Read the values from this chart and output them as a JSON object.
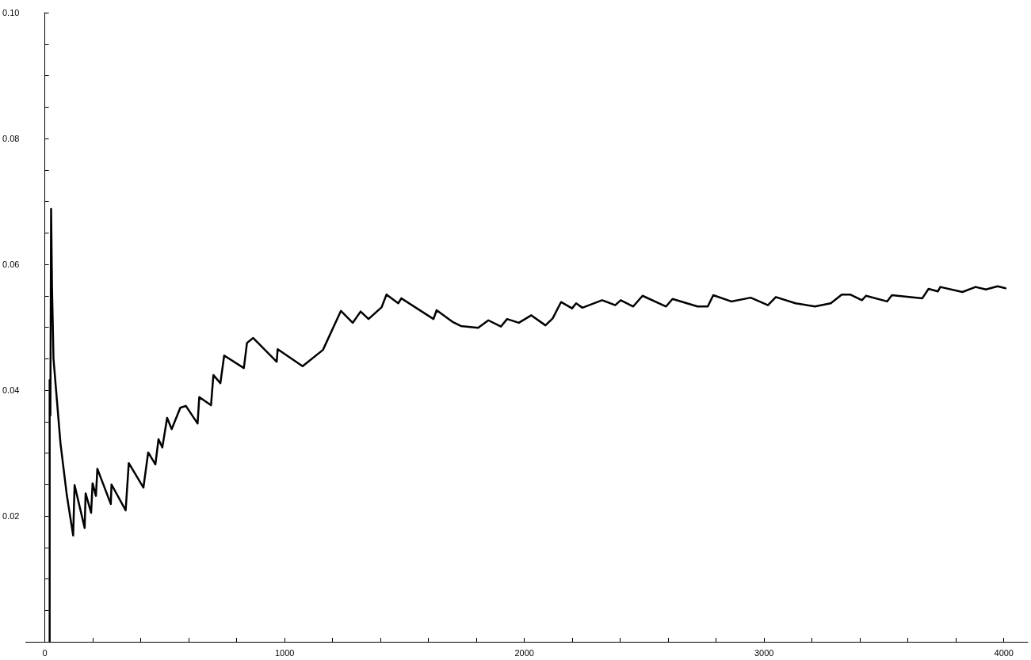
{
  "chart_data": {
    "type": "line",
    "xlim": [
      -80,
      4100
    ],
    "ylim": [
      0,
      0.1
    ],
    "xticks": [
      0,
      {
        "value": 200,
        "label": null
      },
      {
        "value": 400,
        "label": null
      },
      {
        "value": 600,
        "label": null
      },
      {
        "value": 800,
        "label": null
      },
      1000,
      {
        "value": 1200,
        "label": null
      },
      {
        "value": 1400,
        "label": null
      },
      {
        "value": 1600,
        "label": null
      },
      {
        "value": 1800,
        "label": null
      },
      2000,
      {
        "value": 2200,
        "label": null
      },
      {
        "value": 2400,
        "label": null
      },
      {
        "value": 2600,
        "label": null
      },
      {
        "value": 2800,
        "label": null
      },
      3000,
      {
        "value": 3200,
        "label": null
      },
      {
        "value": 3400,
        "label": null
      },
      {
        "value": 3600,
        "label": null
      },
      {
        "value": 3800,
        "label": null
      },
      4000
    ],
    "yticks": [
      {
        "value": 0.005,
        "label": null
      },
      {
        "value": 0.01,
        "label": null
      },
      {
        "value": 0.015,
        "label": null
      },
      0.02,
      {
        "value": 0.025,
        "label": null
      },
      {
        "value": 0.03,
        "label": null
      },
      {
        "value": 0.035,
        "label": null
      },
      0.04,
      {
        "value": 0.045,
        "label": null
      },
      {
        "value": 0.05,
        "label": null
      },
      {
        "value": 0.055,
        "label": null
      },
      0.06,
      {
        "value": 0.065,
        "label": null
      },
      {
        "value": 0.07,
        "label": null
      },
      {
        "value": 0.075,
        "label": null
      },
      0.08,
      {
        "value": 0.085,
        "label": null
      },
      {
        "value": 0.09,
        "label": null
      },
      {
        "value": 0.095,
        "label": null
      },
      {
        "value": 0.1,
        "label": "0.10"
      }
    ],
    "marker": "none",
    "line_style": "solid",
    "series": [
      {
        "color": "#000000",
        "x": [
          20,
          20,
          23,
          26,
          30,
          36,
          65,
          92,
          118,
          124,
          166,
          170,
          193,
          199,
          213,
          219,
          275,
          278,
          337,
          350,
          411,
          431,
          461,
          474,
          490,
          510,
          529,
          565,
          588,
          637,
          644,
          693,
          703,
          732,
          748,
          830,
          843,
          869,
          967,
          971,
          1075,
          1160,
          1235,
          1284,
          1317,
          1350,
          1405,
          1425,
          1474,
          1487,
          1621,
          1634,
          1703,
          1735,
          1807,
          1850,
          1902,
          1928,
          1977,
          2029,
          2088,
          2118,
          2153,
          2199,
          2216,
          2242,
          2324,
          2379,
          2402,
          2454,
          2493,
          2591,
          2618,
          2722,
          2765,
          2788,
          2863,
          2944,
          3016,
          3049,
          3131,
          3212,
          3278,
          3324,
          3359,
          3408,
          3425,
          3513,
          3533,
          3660,
          3686,
          3725,
          3735,
          3827,
          3882,
          3925,
          3974,
          4007
        ],
        "values": [
          0,
          0.0416,
          0.036,
          0.0688,
          0.056,
          0.045,
          0.0316,
          0.0232,
          0.0169,
          0.0249,
          0.0181,
          0.0236,
          0.0205,
          0.0252,
          0.0232,
          0.0275,
          0.0219,
          0.025,
          0.0209,
          0.0284,
          0.0245,
          0.0301,
          0.0282,
          0.0322,
          0.0309,
          0.0356,
          0.0338,
          0.0372,
          0.0375,
          0.0347,
          0.0389,
          0.0376,
          0.0424,
          0.0411,
          0.0455,
          0.0435,
          0.0475,
          0.0483,
          0.0445,
          0.0465,
          0.0438,
          0.0464,
          0.0526,
          0.0507,
          0.0525,
          0.0513,
          0.0532,
          0.0552,
          0.0538,
          0.0546,
          0.0513,
          0.0527,
          0.0508,
          0.0502,
          0.0499,
          0.0511,
          0.0501,
          0.0513,
          0.0507,
          0.0519,
          0.0503,
          0.0514,
          0.054,
          0.053,
          0.0538,
          0.0531,
          0.0543,
          0.0535,
          0.0543,
          0.0533,
          0.055,
          0.0533,
          0.0545,
          0.0533,
          0.0533,
          0.0551,
          0.0541,
          0.0547,
          0.0535,
          0.0548,
          0.0538,
          0.0533,
          0.0538,
          0.0552,
          0.0552,
          0.0543,
          0.055,
          0.0541,
          0.0551,
          0.0546,
          0.0561,
          0.0557,
          0.0564,
          0.0556,
          0.0564,
          0.056,
          0.0565,
          0.0562
        ]
      }
    ]
  }
}
